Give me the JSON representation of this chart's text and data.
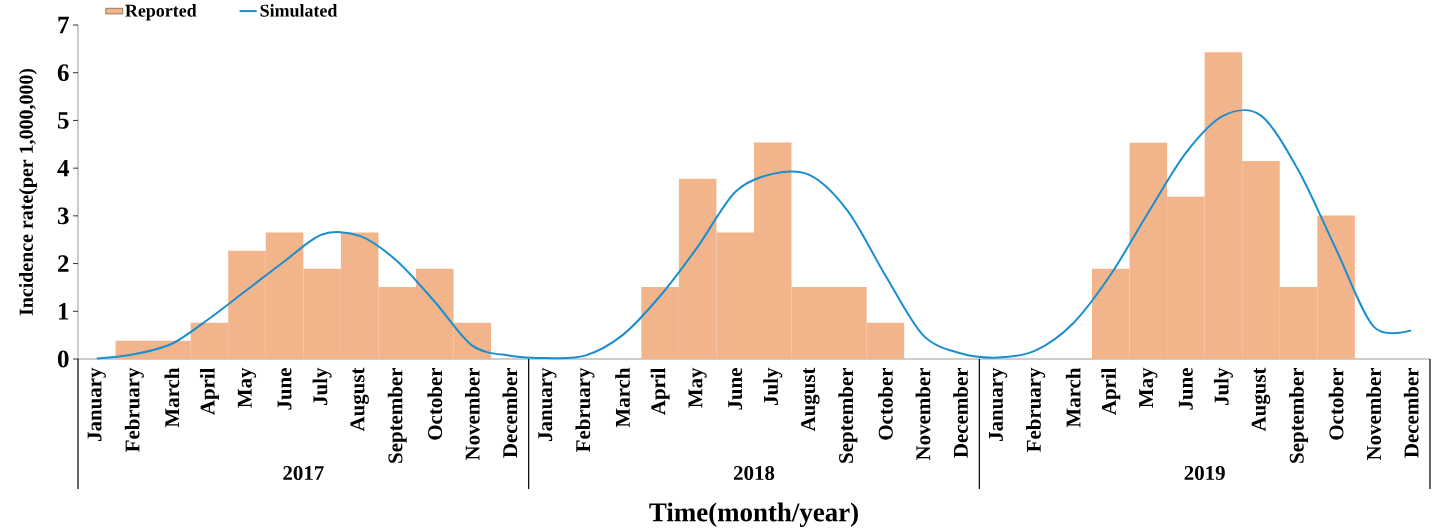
{
  "chart_data": {
    "type": "bar",
    "xlabel": "Time(month/year)",
    "ylabel": "Incidence rate(per 1,000,000)",
    "categories": [
      "January",
      "February",
      "March",
      "April",
      "May",
      "June",
      "July",
      "August",
      "September",
      "October",
      "November",
      "December",
      "January",
      "February",
      "March",
      "April",
      "May",
      "June",
      "July",
      "August",
      "September",
      "October",
      "November",
      "December",
      "January",
      "February",
      "March",
      "April",
      "May",
      "June",
      "July",
      "August",
      "September",
      "October",
      "November",
      "December"
    ],
    "series": [
      {
        "name": "Reported",
        "color": "#f2b48a",
        "values": [
          0,
          0.38,
          0.38,
          0.76,
          2.27,
          2.65,
          1.89,
          2.65,
          1.51,
          1.89,
          0.76,
          0,
          0,
          0,
          0,
          1.51,
          3.78,
          2.65,
          4.54,
          1.51,
          1.51,
          0.76,
          0,
          0,
          0,
          0,
          0,
          1.89,
          4.53,
          3.4,
          6.43,
          4.15,
          1.51,
          3.01,
          0,
          0
        ]
      },
      {
        "name": "Simulated",
        "type": "line",
        "color": "#1a8fd0",
        "values": [
          0.01,
          0.1,
          0.32,
          0.85,
          1.45,
          2.05,
          2.61,
          2.58,
          2.05,
          1.2,
          0.28,
          0.07,
          0.02,
          0.07,
          0.5,
          1.32,
          2.35,
          3.5,
          3.88,
          3.85,
          3.1,
          1.75,
          0.5,
          0.12,
          0.03,
          0.18,
          0.75,
          1.77,
          3.07,
          4.32,
          5.1,
          5.1,
          3.95,
          2.3,
          0.68,
          0.6
        ]
      }
    ],
    "annotations": [
      "2017",
      "2018",
      "2019"
    ],
    "ylim": [
      0,
      7
    ],
    "yticks": [
      0,
      1,
      2,
      3,
      4,
      5,
      6,
      7
    ],
    "grid": false,
    "legend": "top left",
    "line_style": "solid",
    "marker": "none"
  }
}
